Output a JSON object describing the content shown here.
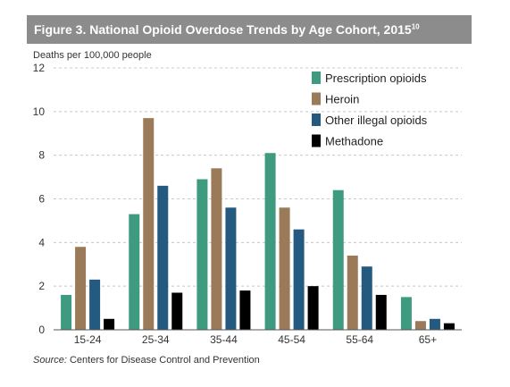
{
  "figure": {
    "title": "Figure 3. National Opioid Overdose Trends by Age Cohort, 2015",
    "title_superscript": "10",
    "header_color": "#8c8c8c"
  },
  "source": {
    "label": "Source:",
    "text": "Centers for Disease Control and Prevention"
  },
  "chart_data": {
    "type": "bar",
    "title": "Figure 3. National Opioid Overdose Trends by Age Cohort, 2015",
    "xlabel": "",
    "ylabel": "Deaths per 100,000 people",
    "ylim": [
      0,
      12
    ],
    "yticks": [
      0,
      2,
      4,
      6,
      8,
      10,
      12
    ],
    "grid": true,
    "legend_position": "top-right",
    "categories": [
      "15-24",
      "25-34",
      "35-44",
      "45-54",
      "55-64",
      "65+"
    ],
    "series": [
      {
        "name": "Prescription opioids",
        "color": "#3e9b80",
        "values": [
          1.6,
          5.3,
          6.9,
          8.1,
          6.4,
          1.5
        ]
      },
      {
        "name": "Heroin",
        "color": "#9b7a5a",
        "values": [
          3.8,
          9.7,
          7.4,
          5.6,
          3.4,
          0.4
        ]
      },
      {
        "name": "Other illegal opioids",
        "color": "#255a80",
        "values": [
          2.3,
          6.6,
          5.6,
          4.6,
          2.9,
          0.5
        ]
      },
      {
        "name": "Methadone",
        "color": "#000000",
        "values": [
          0.5,
          1.7,
          1.8,
          2.0,
          1.6,
          0.3
        ]
      }
    ]
  }
}
